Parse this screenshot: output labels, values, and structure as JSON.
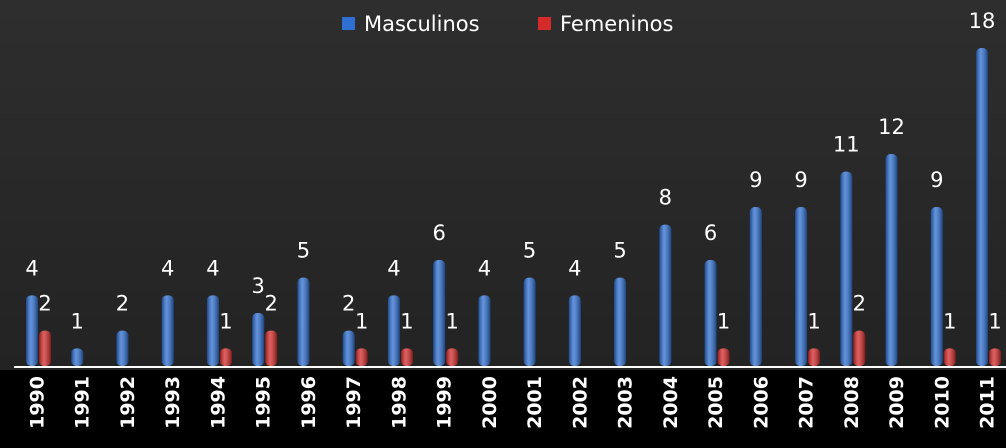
{
  "chart_data": {
    "type": "bar",
    "categories": [
      "1990",
      "1991",
      "1992",
      "1993",
      "1994",
      "1995",
      "1996",
      "1997",
      "1998",
      "1999",
      "2000",
      "2001",
      "2002",
      "2003",
      "2004",
      "2005",
      "2006",
      "2007",
      "2008",
      "2009",
      "2010",
      "2011"
    ],
    "series": [
      {
        "name": "Masculinos",
        "color": "#2e6fd1",
        "values": [
          4,
          1,
          2,
          4,
          4,
          3,
          5,
          2,
          4,
          6,
          4,
          5,
          4,
          5,
          8,
          6,
          9,
          9,
          11,
          12,
          9,
          18
        ]
      },
      {
        "name": "Femeninos",
        "color": "#d42a2a",
        "values": [
          2,
          null,
          null,
          null,
          1,
          2,
          null,
          1,
          1,
          1,
          null,
          null,
          null,
          null,
          null,
          1,
          null,
          1,
          2,
          null,
          1,
          1
        ]
      }
    ],
    "legend": "top"
  }
}
